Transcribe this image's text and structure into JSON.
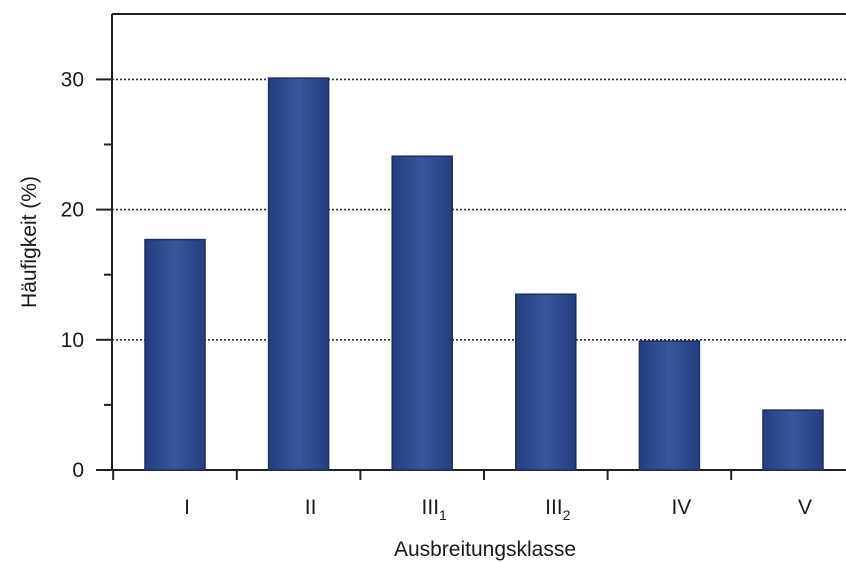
{
  "chart_data": {
    "type": "bar",
    "title": "",
    "xlabel": "Ausbreitungsklasse",
    "ylabel": "Häufigkeit (%)",
    "categories": [
      {
        "base": "I",
        "sub": ""
      },
      {
        "base": "II",
        "sub": ""
      },
      {
        "base": "III",
        "sub": "1"
      },
      {
        "base": "III",
        "sub": "2"
      },
      {
        "base": "IV",
        "sub": ""
      },
      {
        "base": "V",
        "sub": ""
      }
    ],
    "values": [
      17.7,
      30.1,
      24.1,
      13.5,
      9.9,
      4.6
    ],
    "ylim": [
      0,
      35
    ],
    "yticks_labeled": [
      0,
      10,
      20,
      30
    ],
    "yticks_minor": [
      5,
      15,
      25
    ],
    "grid": "dotted horizontal lines at 10, 20, 30",
    "legend": "none",
    "bar_color": "#2f4e93",
    "bar_edge_color": "#1b2f63"
  }
}
